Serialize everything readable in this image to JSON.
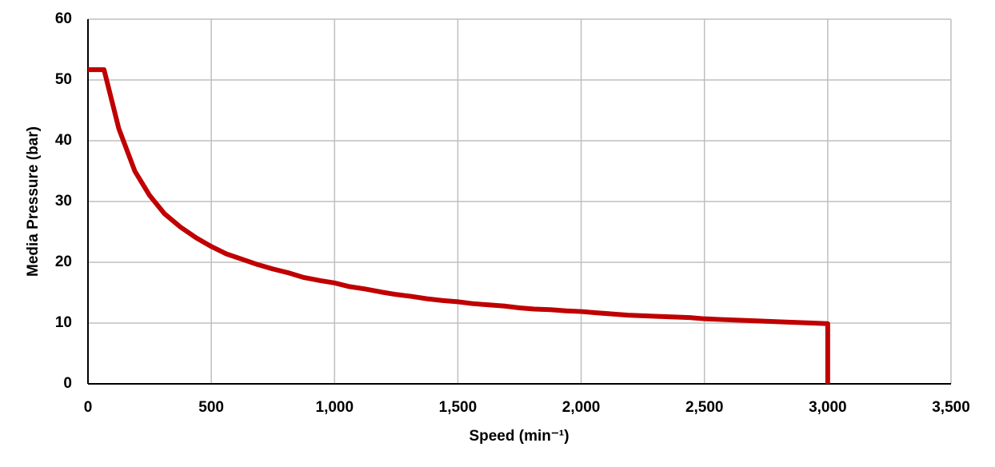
{
  "chart_data": {
    "type": "line",
    "x_label": "Speed (min⁻¹)",
    "y_label": "Media Pressure (bar)",
    "x": [
      0,
      65,
      125,
      190,
      250,
      310,
      375,
      440,
      500,
      560,
      625,
      690,
      750,
      810,
      875,
      940,
      1000,
      1060,
      1125,
      1190,
      1250,
      1310,
      1375,
      1440,
      1500,
      1560,
      1625,
      1690,
      1750,
      1810,
      1875,
      1940,
      2000,
      2060,
      2125,
      2190,
      2250,
      2310,
      2375,
      2440,
      2500,
      2560,
      2625,
      2690,
      2750,
      2810,
      2875,
      2940,
      3000,
      3000
    ],
    "series": [
      {
        "color": "#c00000",
        "values": [
          51.7,
          51.7,
          42,
          35,
          31,
          28,
          25.8,
          24,
          22.6,
          21.4,
          20.5,
          19.6,
          18.9,
          18.3,
          17.5,
          17,
          16.6,
          16,
          15.6,
          15.1,
          14.7,
          14.4,
          14,
          13.7,
          13.5,
          13.2,
          13,
          12.8,
          12.5,
          12.3,
          12.2,
          12,
          11.9,
          11.7,
          11.5,
          11.3,
          11.2,
          11.1,
          11,
          10.9,
          10.7,
          10.6,
          10.5,
          10.4,
          10.3,
          10.2,
          10.1,
          10,
          9.9,
          0
        ]
      }
    ],
    "xlim": [
      0,
      3500
    ],
    "xticks": [
      0,
      500,
      {
        "value": 1000,
        "label": "1,000"
      },
      {
        "value": 1500,
        "label": "1,500"
      },
      {
        "value": 2000,
        "label": "2,000"
      },
      {
        "value": 2500,
        "label": "2,500"
      },
      {
        "value": 3000,
        "label": "3,000"
      },
      {
        "value": 3500,
        "label": "3,500"
      }
    ],
    "ylim": [
      0,
      60
    ],
    "yticks": [
      0,
      10,
      20,
      30,
      40,
      50,
      60
    ],
    "grid": true
  }
}
